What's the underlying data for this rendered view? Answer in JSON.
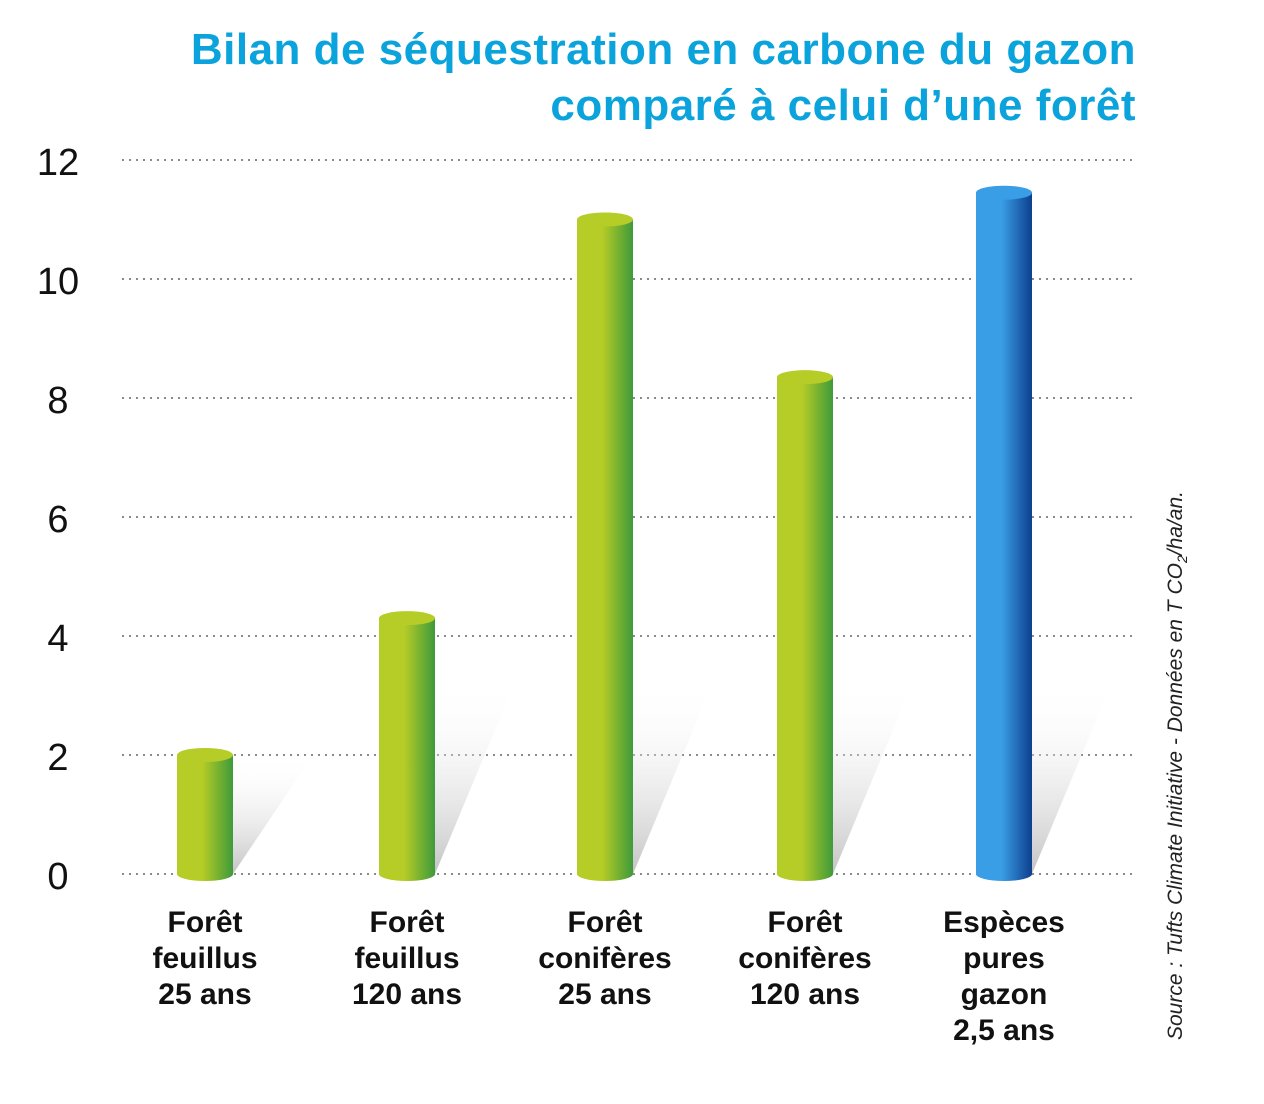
{
  "chart_data": {
    "type": "bar",
    "title_line1": "Bilan de séquestration en carbone du gazon",
    "title_line2": "comparé à celui d’une forêt",
    "categories": [
      [
        "Forêt",
        "feuillus",
        "25 ans"
      ],
      [
        "Forêt",
        "feuillus",
        "120 ans"
      ],
      [
        "Forêt",
        "conifères",
        "25 ans"
      ],
      [
        "Forêt",
        "conifères",
        "120 ans"
      ],
      [
        "Espèces",
        "pures",
        "gazon",
        "2,5 ans"
      ]
    ],
    "values": [
      2.0,
      4.3,
      11.0,
      8.35,
      11.45
    ],
    "bar_colors": [
      "green",
      "green",
      "green",
      "green",
      "blue"
    ],
    "ylim": [
      0,
      12
    ],
    "yticks": [
      "0",
      "2",
      "4",
      "6",
      "8",
      "10",
      "12"
    ],
    "grid": true,
    "source_prefix": "Source : Tufts Climate Initiative - Données en T CO",
    "source_sub": "2",
    "source_suffix": "/ha/an."
  },
  "colors": {
    "title": "#0aa3dc",
    "green_light": "#b6cc27",
    "green_dark": "#3e9a3a",
    "blue_light": "#3a9ee6",
    "blue_dark": "#0d3f8e"
  }
}
